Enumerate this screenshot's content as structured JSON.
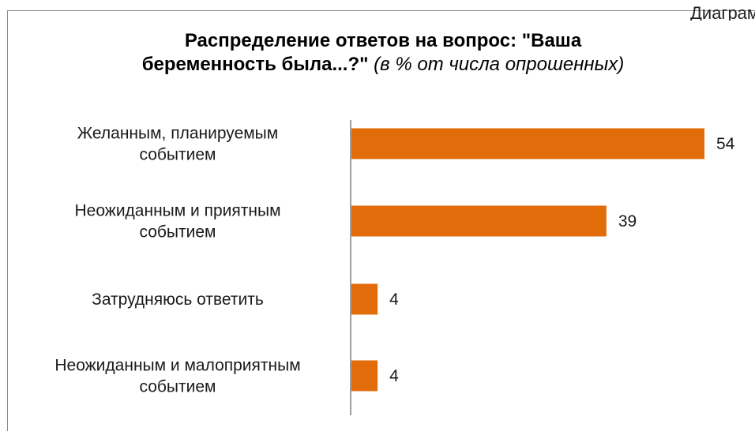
{
  "corner_text": "Диаграм",
  "title_line1": "Распределение ответов на вопрос: \"Ваша",
  "title_line2_bold": "беременность была...?\"",
  "title_line2_italic": "(в % от числа опрошенных)",
  "colors": {
    "bar": "#E36C0A",
    "axis": "#7f7f7f",
    "frame": "#8c8c8c"
  },
  "chart_data": {
    "type": "bar",
    "orientation": "horizontal",
    "title": "Распределение ответов на вопрос: \"Ваша беременность была...?\" (в % от числа опрошенных)",
    "categories": [
      [
        "Желанным, планируемым",
        "событием"
      ],
      [
        "Неожиданным и приятным",
        "событием"
      ],
      [
        "Затрудняюсь ответить"
      ],
      [
        "Неожиданным и малоприятным",
        "событием"
      ]
    ],
    "values": [
      54,
      39,
      4,
      4
    ],
    "xlim": [
      0,
      54
    ],
    "grid": false,
    "legend": "none"
  }
}
